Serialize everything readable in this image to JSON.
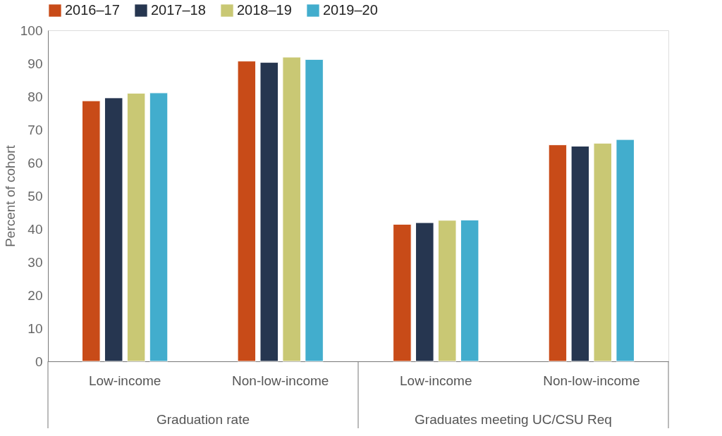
{
  "chart_data": {
    "type": "bar",
    "ylabel": "Percent of cohort",
    "categories": [
      "Low-income",
      "Non-low-income",
      "Low-income",
      "Non-low-income"
    ],
    "series": [
      {
        "name": "2016–17",
        "color": "#c84b18",
        "values": [
          78.7,
          90.7,
          41.4,
          65.4
        ]
      },
      {
        "name": "2017–18",
        "color": "#263650",
        "values": [
          79.6,
          90.3,
          41.9,
          65.0
        ]
      },
      {
        "name": "2018–19",
        "color": "#c9c874",
        "values": [
          81.0,
          91.9,
          42.6,
          65.9
        ]
      },
      {
        "name": "2019–20",
        "color": "#42adcd",
        "values": [
          81.1,
          91.2,
          42.7,
          67.0
        ]
      }
    ],
    "ylim": [
      0,
      100
    ],
    "yticks": [
      0,
      10,
      20,
      30,
      40,
      50,
      60,
      70,
      80,
      90,
      100
    ],
    "grid": false,
    "legend": "top",
    "annotations": [
      "Graduation rate",
      "Graduates meeting UC/CSU Req"
    ]
  }
}
